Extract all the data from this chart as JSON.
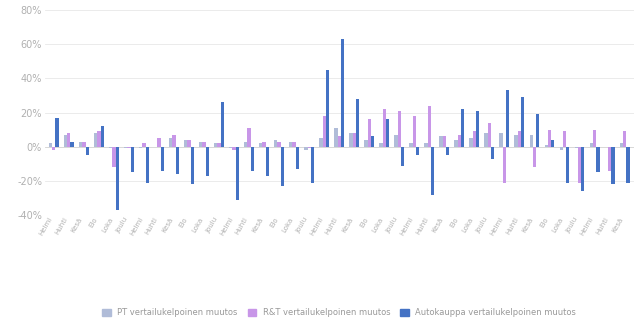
{
  "categories": [
    "Helmi",
    "Huhti",
    "Kesä",
    "Elo",
    "Loka",
    "Joulu",
    "Helmi",
    "Huhti",
    "Kesä",
    "Elo",
    "Loka",
    "Joulu",
    "Helmi",
    "Huhti",
    "Kesä",
    "Elo",
    "Loka",
    "Joulu",
    "Helmi",
    "Huhti",
    "Kesä",
    "Elo",
    "Loka",
    "Joulu",
    "Helmi",
    "Huhti",
    "Kesä",
    "Elo",
    "Loka",
    "Joulu",
    "Helmi",
    "Huhti",
    "Kesä",
    "Elo",
    "Loka",
    "Joulu",
    "Helmi",
    "Huhti",
    "Kesä"
  ],
  "PT": [
    2,
    7,
    3,
    8,
    -1,
    -1,
    -1,
    0,
    5,
    4,
    3,
    2,
    -1,
    3,
    2,
    4,
    3,
    -2,
    5,
    11,
    8,
    4,
    2,
    7,
    2,
    2,
    6,
    4,
    5,
    8,
    8,
    7,
    7,
    1,
    -2,
    -1,
    2,
    0,
    2
  ],
  "RT": [
    -2,
    8,
    3,
    9,
    -12,
    -1,
    2,
    5,
    7,
    4,
    3,
    2,
    -2,
    11,
    3,
    3,
    3,
    -1,
    18,
    6,
    8,
    16,
    22,
    21,
    18,
    24,
    6,
    7,
    9,
    14,
    -21,
    9,
    -12,
    10,
    9,
    -21,
    10,
    -14,
    9
  ],
  "Auto": [
    17,
    3,
    -5,
    12,
    -37,
    -15,
    -21,
    -14,
    -16,
    -22,
    -17,
    26,
    -31,
    -14,
    -17,
    -23,
    -13,
    -21,
    45,
    63,
    28,
    6,
    16,
    -11,
    -5,
    -28,
    -5,
    22,
    21,
    -7,
    33,
    29,
    19,
    4,
    -21,
    -26,
    -15,
    -22,
    -21
  ],
  "PT_color": "#b0bcd8",
  "RT_color": "#c896e8",
  "Auto_color": "#4472c4",
  "background": "#ffffff",
  "ylim": [
    -40,
    80
  ],
  "yticks": [
    -40,
    -20,
    0,
    20,
    40,
    60,
    80
  ],
  "legend_labels": [
    "PT vertailukelpoinen muutos",
    "R&T vertailukelpoinen muutos",
    "Autokauppa vertailukelpoinen muutos"
  ]
}
